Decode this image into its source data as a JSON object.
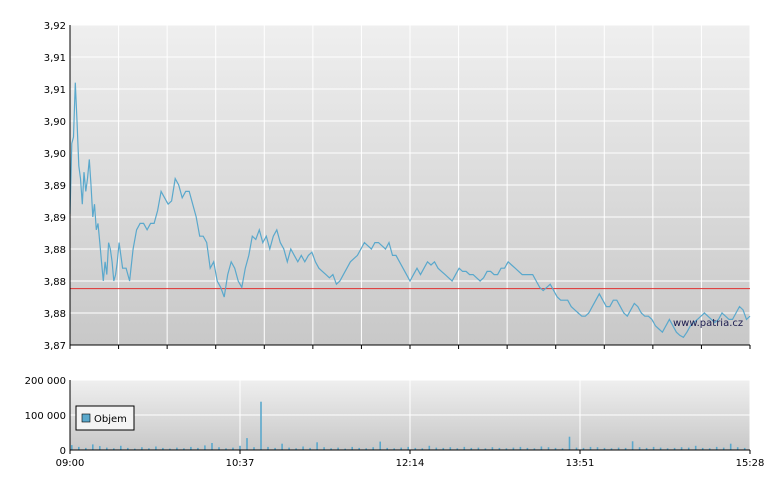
{
  "chart_data": [
    {
      "type": "line",
      "title": "",
      "xlabel": "",
      "ylabel": "",
      "ylim": [
        3.87,
        3.92
      ],
      "yticks": [
        "3,92",
        "3,91",
        "3,91",
        "3,90",
        "3,90",
        "3,89",
        "3,89",
        "3,88",
        "3,88",
        "3,88",
        "3,87"
      ],
      "xticks": [
        "09:00",
        "10:37",
        "12:14",
        "13:51",
        "15:28"
      ],
      "x_range_minutes": [
        540,
        928
      ],
      "reference_line": 3.8788,
      "reference_color": "#e03030",
      "line_color": "#5aa8cc",
      "grid": true,
      "watermark": "www.patria.cz",
      "series": [
        {
          "x": [
            540,
            541,
            542,
            543,
            544,
            545,
            546,
            547,
            548,
            549,
            550,
            551,
            552,
            553,
            554,
            555,
            556,
            557,
            558,
            559,
            560,
            561,
            562,
            563,
            564,
            565,
            566,
            567,
            568,
            570,
            572,
            574,
            576,
            578,
            580,
            582,
            584,
            586,
            588,
            590,
            592,
            594,
            596,
            598,
            600,
            602,
            604,
            606,
            608,
            610,
            612,
            614,
            616,
            618,
            620,
            622,
            624,
            626,
            628,
            630,
            632,
            634,
            636,
            638,
            640,
            642,
            644,
            646,
            648,
            650,
            652,
            654,
            656,
            658,
            660,
            662,
            664,
            666,
            668,
            670,
            672,
            674,
            676,
            678,
            680,
            682,
            684,
            686,
            688,
            690,
            692,
            694,
            696,
            698,
            700,
            702,
            704,
            706,
            708,
            710,
            712,
            714,
            716,
            718,
            720,
            722,
            724,
            726,
            728,
            730,
            732,
            734,
            736,
            738,
            740,
            742,
            744,
            746,
            748,
            750,
            752,
            754,
            756,
            758,
            760,
            762,
            764,
            766,
            768,
            770,
            772,
            774,
            776,
            778,
            780,
            782,
            784,
            786,
            788,
            790,
            792,
            794,
            796,
            798,
            800,
            802,
            804,
            806,
            808,
            810,
            812,
            814,
            816,
            818,
            820,
            822,
            824,
            826,
            828,
            830,
            832,
            834,
            836,
            838,
            840,
            842,
            844,
            846,
            848,
            850,
            852,
            854,
            856,
            858,
            860,
            862,
            864,
            866,
            868,
            870,
            872,
            874,
            876,
            878,
            880,
            882,
            884,
            886,
            888,
            890,
            892,
            894,
            896,
            898,
            900,
            902,
            904,
            906,
            908,
            910,
            912,
            914,
            916,
            918,
            920,
            922,
            924,
            926,
            928
          ],
          "values": [
            3.8905,
            3.9015,
            3.9025,
            3.911,
            3.905,
            3.898,
            3.896,
            3.892,
            3.897,
            3.894,
            3.896,
            3.899,
            3.895,
            3.89,
            3.892,
            3.888,
            3.889,
            3.886,
            3.883,
            3.88,
            3.883,
            3.881,
            3.886,
            3.885,
            3.883,
            3.88,
            3.881,
            3.883,
            3.886,
            3.882,
            3.882,
            3.88,
            3.885,
            3.888,
            3.889,
            3.889,
            3.888,
            3.889,
            3.889,
            3.891,
            3.894,
            3.893,
            3.892,
            3.8925,
            3.896,
            3.895,
            3.893,
            3.894,
            3.894,
            3.892,
            3.89,
            3.887,
            3.887,
            3.886,
            3.882,
            3.883,
            3.88,
            3.879,
            3.8775,
            3.881,
            3.883,
            3.882,
            3.88,
            3.879,
            3.882,
            3.884,
            3.887,
            3.8865,
            3.888,
            3.886,
            3.887,
            3.885,
            3.887,
            3.888,
            3.886,
            3.885,
            3.883,
            3.885,
            3.884,
            3.883,
            3.884,
            3.883,
            3.884,
            3.8845,
            3.883,
            3.882,
            3.8815,
            3.881,
            3.8805,
            3.881,
            3.8795,
            3.88,
            3.881,
            3.882,
            3.883,
            3.8835,
            3.884,
            3.885,
            3.886,
            3.8855,
            3.885,
            3.886,
            3.886,
            3.8855,
            3.885,
            3.886,
            3.884,
            3.884,
            3.883,
            3.882,
            3.881,
            3.88,
            3.881,
            3.882,
            3.881,
            3.882,
            3.883,
            3.8825,
            3.883,
            3.882,
            3.8815,
            3.881,
            3.8805,
            3.88,
            3.881,
            3.882,
            3.8815,
            3.8815,
            3.881,
            3.881,
            3.8805,
            3.88,
            3.8805,
            3.8815,
            3.8815,
            3.881,
            3.881,
            3.882,
            3.882,
            3.883,
            3.8825,
            3.882,
            3.8815,
            3.881,
            3.881,
            3.881,
            3.881,
            3.88,
            3.879,
            3.8785,
            3.879,
            3.8795,
            3.8785,
            3.8775,
            3.877,
            3.877,
            3.877,
            3.876,
            3.8755,
            3.875,
            3.8745,
            3.8745,
            3.875,
            3.876,
            3.877,
            3.878,
            3.877,
            3.876,
            3.876,
            3.877,
            3.877,
            3.876,
            3.875,
            3.8745,
            3.8755,
            3.8765,
            3.876,
            3.875,
            3.8745,
            3.8745,
            3.874,
            3.873,
            3.8725,
            3.872,
            3.873,
            3.874,
            3.873,
            3.872,
            3.8715,
            3.8712,
            3.872,
            3.873,
            3.8735,
            3.874,
            3.8745,
            3.875,
            3.8745,
            3.874,
            3.8735,
            3.874,
            3.875,
            3.8745,
            3.874,
            3.874,
            3.875,
            3.876,
            3.8755,
            3.874,
            3.8745
          ]
        }
      ]
    },
    {
      "type": "bar",
      "title": "",
      "ylim": [
        0,
        200000
      ],
      "yticks": [
        "200 000",
        "100 000",
        "0"
      ],
      "xticks": [
        "09:00",
        "10:37",
        "12:14",
        "13:51",
        "15:28"
      ],
      "legend": "Objem",
      "legend_position": "top-left",
      "bar_color": "#5aa8cc",
      "grid": true,
      "x": [
        541,
        545,
        549,
        553,
        557,
        561,
        565,
        569,
        573,
        577,
        581,
        585,
        589,
        593,
        597,
        601,
        605,
        609,
        613,
        617,
        621,
        625,
        629,
        633,
        637,
        641,
        645,
        649,
        653,
        657,
        661,
        665,
        669,
        673,
        677,
        681,
        685,
        689,
        693,
        697,
        701,
        705,
        709,
        713,
        717,
        721,
        725,
        729,
        733,
        737,
        741,
        745,
        749,
        753,
        757,
        761,
        765,
        769,
        773,
        777,
        781,
        785,
        789,
        793,
        797,
        801,
        805,
        809,
        813,
        817,
        821,
        825,
        829,
        833,
        837,
        841,
        845,
        849,
        853,
        857,
        861,
        865,
        869,
        873,
        877,
        881,
        885,
        889,
        893,
        897,
        901,
        905,
        909,
        913,
        917,
        921,
        925
      ],
      "values": [
        14000,
        9000,
        6000,
        16000,
        11000,
        7000,
        5000,
        12000,
        6000,
        4000,
        8000,
        5000,
        10000,
        6000,
        4000,
        7000,
        5000,
        9000,
        6000,
        13000,
        20000,
        8000,
        5000,
        7000,
        12000,
        34000,
        8000,
        138000,
        9000,
        6000,
        18000,
        7000,
        5000,
        10000,
        6000,
        22000,
        8000,
        5000,
        7000,
        4000,
        9000,
        6000,
        5000,
        8000,
        24000,
        6000,
        5000,
        7000,
        9000,
        6000,
        5000,
        12000,
        7000,
        6000,
        8000,
        5000,
        9000,
        6000,
        7000,
        5000,
        8000,
        6000,
        5000,
        7000,
        9000,
        6000,
        5000,
        10000,
        8000,
        6000,
        5000,
        38000,
        7000,
        6000,
        9000,
        8000,
        6000,
        5000,
        7000,
        6000,
        25000,
        8000,
        6000,
        9000,
        7000,
        5000,
        6000,
        8000,
        7000,
        12000,
        6000,
        5000,
        9000,
        7000,
        18000,
        8000,
        6000
      ]
    }
  ]
}
